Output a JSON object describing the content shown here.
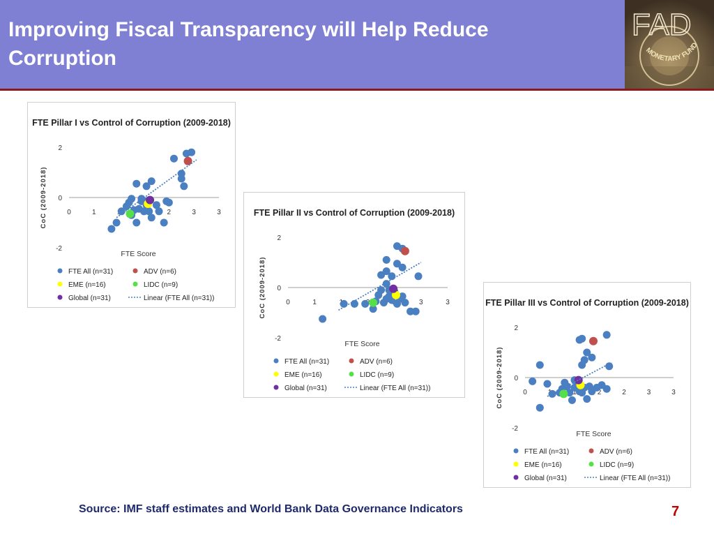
{
  "header": {
    "title_line1": "Improving Fiscal Transparency will Help Reduce",
    "title_line2": "Corruption"
  },
  "logo": {
    "text": "FAD",
    "arc_text": "MONETARY FUND"
  },
  "footer": {
    "source": "Source: IMF staff estimates and World Bank Data Governance Indicators",
    "page_number": "7"
  },
  "colors": {
    "header_bg": "#7f80d3",
    "header_rule": "#8b1a1a",
    "fte_all": "#4a7fc1",
    "adv": "#c0504d",
    "eme": "#ffff00",
    "lidc": "#55e04a",
    "global": "#7030a0",
    "trend": "#4a7fc1"
  },
  "chart_data": [
    {
      "type": "scatter",
      "title": "FTE Pillar I vs Control of Corruption (2009-2018)",
      "xlabel": "FTE Score",
      "ylabel": "CoC (2009-2018)",
      "x_ticks": [
        "0",
        "1",
        "1",
        "2",
        "2",
        "3",
        "3"
      ],
      "y_ticks": [
        "2",
        "0",
        "-2"
      ],
      "xlim": [
        0,
        3
      ],
      "ylim": [
        -2,
        2
      ],
      "legend": [
        {
          "label": "FTE All (n=31)",
          "key": "fte_all",
          "marker": "dot"
        },
        {
          "label": "ADV (n=6)",
          "key": "adv",
          "marker": "dot"
        },
        {
          "label": "EME (n=16)",
          "key": "eme",
          "marker": "dot"
        },
        {
          "label": "LIDC (n=9)",
          "key": "lidc",
          "marker": "dot"
        },
        {
          "label": "Global (n=31)",
          "key": "global",
          "marker": "dot"
        },
        {
          "label": "Linear (FTE All (n=31))",
          "key": "trend",
          "marker": "line"
        }
      ],
      "trendline": {
        "x": [
          0.95,
          2.55
        ],
        "y": [
          -0.8,
          1.5
        ]
      },
      "series": [
        {
          "key": "fte_all",
          "points": [
            [
              0.85,
              -1.25
            ],
            [
              0.95,
              -1.0
            ],
            [
              1.05,
              -0.55
            ],
            [
              1.15,
              -0.35
            ],
            [
              1.2,
              -0.2
            ],
            [
              1.25,
              -0.7
            ],
            [
              1.3,
              -0.5
            ],
            [
              1.35,
              -1.0
            ],
            [
              1.4,
              -0.45
            ],
            [
              1.45,
              -0.15
            ],
            [
              1.5,
              -0.55
            ],
            [
              1.55,
              -0.3
            ],
            [
              1.6,
              -0.55
            ],
            [
              1.65,
              -0.8
            ],
            [
              1.75,
              -0.3
            ],
            [
              1.8,
              -0.55
            ],
            [
              1.9,
              -1.0
            ],
            [
              1.95,
              -0.15
            ],
            [
              2.0,
              -0.2
            ],
            [
              2.1,
              1.55
            ],
            [
              2.25,
              0.95
            ],
            [
              2.3,
              0.45
            ],
            [
              2.35,
              1.75
            ],
            [
              2.45,
              1.8
            ],
            [
              1.55,
              0.45
            ],
            [
              1.65,
              0.65
            ],
            [
              1.35,
              0.55
            ],
            [
              1.25,
              -0.05
            ],
            [
              1.45,
              -0.05
            ],
            [
              1.55,
              -0.15
            ],
            [
              2.25,
              0.75
            ]
          ]
        },
        {
          "key": "adv",
          "points": [
            [
              2.38,
              1.45
            ]
          ]
        },
        {
          "key": "eme",
          "points": [
            [
              1.58,
              -0.25
            ]
          ]
        },
        {
          "key": "lidc",
          "points": [
            [
              1.22,
              -0.65
            ]
          ]
        },
        {
          "key": "global",
          "points": [
            [
              1.62,
              -0.1
            ]
          ]
        }
      ]
    },
    {
      "type": "scatter",
      "title": "FTE Pillar II vs Control of Corruption (2009-2018)",
      "xlabel": "FTE Score",
      "ylabel": "CoC (2009-2018)",
      "x_ticks": [
        "0",
        "1",
        "1",
        "2",
        "2",
        "3",
        "3"
      ],
      "y_ticks": [
        "2",
        "0",
        "-2"
      ],
      "xlim": [
        0,
        3
      ],
      "ylim": [
        -2,
        2
      ],
      "legend": [
        {
          "label": "FTE All (n=31)",
          "key": "fte_all",
          "marker": "dot"
        },
        {
          "label": "ADV (n=6)",
          "key": "adv",
          "marker": "dot"
        },
        {
          "label": "EME (n=16)",
          "key": "eme",
          "marker": "dot"
        },
        {
          "label": "LIDC (n=9)",
          "key": "lidc",
          "marker": "dot"
        },
        {
          "label": "Global (n=31)",
          "key": "global",
          "marker": "dot"
        },
        {
          "label": "Linear (FTE All (n=31))",
          "key": "trend",
          "marker": "line"
        }
      ],
      "trendline": {
        "x": [
          0.95,
          2.5
        ],
        "y": [
          -0.9,
          1.0
        ]
      },
      "series": [
        {
          "key": "fte_all",
          "points": [
            [
              0.65,
              -1.25
            ],
            [
              1.05,
              -0.65
            ],
            [
              1.25,
              -0.65
            ],
            [
              1.45,
              -0.65
            ],
            [
              1.6,
              -0.85
            ],
            [
              1.65,
              -0.55
            ],
            [
              1.7,
              -0.3
            ],
            [
              1.75,
              -0.1
            ],
            [
              1.8,
              -0.6
            ],
            [
              1.85,
              -0.45
            ],
            [
              1.9,
              -0.35
            ],
            [
              1.95,
              -0.5
            ],
            [
              2.0,
              -0.25
            ],
            [
              2.05,
              -0.65
            ],
            [
              2.1,
              -0.45
            ],
            [
              2.15,
              -0.35
            ],
            [
              2.2,
              -0.6
            ],
            [
              2.3,
              -0.95
            ],
            [
              2.4,
              -0.95
            ],
            [
              1.75,
              0.5
            ],
            [
              1.85,
              0.65
            ],
            [
              1.95,
              0.45
            ],
            [
              2.05,
              0.95
            ],
            [
              2.15,
              0.8
            ],
            [
              2.05,
              1.65
            ],
            [
              2.15,
              1.55
            ],
            [
              1.85,
              1.1
            ],
            [
              2.45,
              0.45
            ],
            [
              1.9,
              -0.1
            ],
            [
              1.85,
              0.15
            ],
            [
              2.0,
              -0.15
            ]
          ]
        },
        {
          "key": "adv",
          "points": [
            [
              2.2,
              1.45
            ]
          ]
        },
        {
          "key": "eme",
          "points": [
            [
              2.03,
              -0.3
            ]
          ]
        },
        {
          "key": "lidc",
          "points": [
            [
              1.6,
              -0.6
            ]
          ]
        },
        {
          "key": "global",
          "points": [
            [
              1.98,
              -0.05
            ]
          ]
        }
      ]
    },
    {
      "type": "scatter",
      "title": "FTE Pillar III vs Control of Corruption (2009-2018)",
      "xlabel": "FTE Score",
      "ylabel": "CoC (2009-2018)",
      "x_ticks": [
        "0",
        "1",
        "1",
        "2",
        "2",
        "3",
        "3"
      ],
      "y_ticks": [
        "2",
        "0",
        "-2"
      ],
      "xlim": [
        0,
        3
      ],
      "ylim": [
        -2,
        2
      ],
      "legend": [
        {
          "label": "FTE All (n=31)",
          "key": "fte_all",
          "marker": "dot"
        },
        {
          "label": "ADV (n=6)",
          "key": "adv",
          "marker": "dot"
        },
        {
          "label": "EME (n=16)",
          "key": "eme",
          "marker": "dot"
        },
        {
          "label": "LIDC (n=9)",
          "key": "lidc",
          "marker": "dot"
        },
        {
          "label": "Global (n=31)",
          "key": "global",
          "marker": "dot"
        },
        {
          "label": "Linear (FTE All (n=31))",
          "key": "trend",
          "marker": "line"
        }
      ],
      "trendline": {
        "x": [
          0.45,
          1.75
        ],
        "y": [
          -0.75,
          0.6
        ]
      },
      "series": [
        {
          "key": "fte_all",
          "points": [
            [
              0.15,
              -0.15
            ],
            [
              0.3,
              0.5
            ],
            [
              0.3,
              -1.2
            ],
            [
              0.45,
              -0.25
            ],
            [
              0.55,
              -0.65
            ],
            [
              0.7,
              -0.6
            ],
            [
              0.75,
              -0.45
            ],
            [
              0.8,
              -0.2
            ],
            [
              0.85,
              -0.35
            ],
            [
              0.9,
              -0.6
            ],
            [
              0.95,
              -0.9
            ],
            [
              1.0,
              -0.4
            ],
            [
              1.05,
              -0.25
            ],
            [
              1.1,
              -0.55
            ],
            [
              1.15,
              -0.6
            ],
            [
              1.2,
              -0.4
            ],
            [
              1.25,
              -0.85
            ],
            [
              1.3,
              -0.35
            ],
            [
              1.35,
              -0.55
            ],
            [
              1.45,
              -0.4
            ],
            [
              1.55,
              -0.3
            ],
            [
              1.65,
              -0.45
            ],
            [
              1.15,
              0.5
            ],
            [
              1.2,
              0.7
            ],
            [
              1.25,
              1.0
            ],
            [
              1.35,
              0.8
            ],
            [
              1.1,
              1.5
            ],
            [
              1.15,
              1.55
            ],
            [
              1.65,
              1.7
            ],
            [
              1.7,
              0.45
            ],
            [
              1.0,
              -0.1
            ]
          ]
        },
        {
          "key": "adv",
          "points": [
            [
              1.38,
              1.45
            ]
          ]
        },
        {
          "key": "eme",
          "points": [
            [
              1.12,
              -0.3
            ]
          ]
        },
        {
          "key": "lidc",
          "points": [
            [
              0.78,
              -0.65
            ]
          ]
        },
        {
          "key": "global",
          "points": [
            [
              1.08,
              -0.1
            ]
          ]
        }
      ]
    }
  ]
}
